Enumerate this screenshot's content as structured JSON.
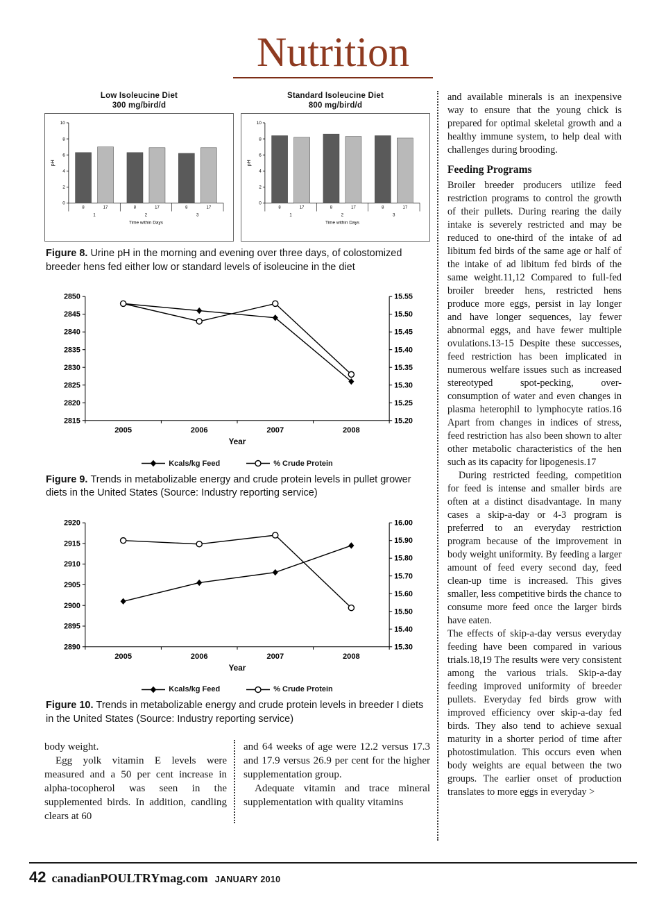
{
  "masthead": {
    "title": "Nutrition"
  },
  "figures": {
    "fig8": {
      "label": "Figure 8.",
      "caption": "Urine pH in the morning and evening over three days, of colostomized breeder hens fed either low or standard levels of isoleucine in the diet"
    },
    "fig9": {
      "label": "Figure 9.",
      "caption": "Trends in metabolizable energy and crude protein levels in pullet grower diets in the United States (Source: Industry reporting service)"
    },
    "fig10": {
      "label": "Figure 10.",
      "caption": "Trends in metabolizable energy and crude protein levels in breeder I diets in the United States (Source: Industry reporting service)"
    }
  },
  "chart_data": [
    {
      "id": "low-isoleucine",
      "type": "bar",
      "title": "Low Isoleucine Diet",
      "subtitle": "300 mg/bird/d",
      "ylabel": "pH",
      "xlabel": "Time within Days",
      "ylim": [
        0,
        10
      ],
      "yticks": [
        0,
        2,
        4,
        6,
        8,
        10
      ],
      "day_labels": [
        "1",
        "2",
        "3"
      ],
      "series": [
        {
          "name": "8",
          "color": "#5a5a5a",
          "values": [
            6.3,
            6.3,
            6.2
          ]
        },
        {
          "name": "17",
          "color": "#b9b9b9",
          "values": [
            7.0,
            6.9,
            6.9
          ]
        }
      ]
    },
    {
      "id": "standard-isoleucine",
      "type": "bar",
      "title": "Standard Isoleucine Diet",
      "subtitle": "800 mg/bird/d",
      "ylabel": "pH",
      "xlabel": "Time within Days",
      "ylim": [
        0,
        10
      ],
      "yticks": [
        0,
        2,
        4,
        6,
        8,
        10
      ],
      "day_labels": [
        "1",
        "2",
        "3"
      ],
      "series": [
        {
          "name": "8",
          "color": "#5a5a5a",
          "values": [
            8.4,
            8.6,
            8.4
          ]
        },
        {
          "name": "17",
          "color": "#b9b9b9",
          "values": [
            8.2,
            8.3,
            8.1
          ]
        }
      ]
    },
    {
      "id": "pullet-grower",
      "type": "line",
      "xlabel": "Year",
      "x": [
        "2005",
        "2006",
        "2007",
        "2008"
      ],
      "left_axis": {
        "min": 2815,
        "max": 2850,
        "step": 5,
        "decimals": 0
      },
      "right_axis": {
        "min": 15.2,
        "max": 15.55,
        "step": 0.05,
        "decimals": 2
      },
      "series": [
        {
          "name": "Kcals/kg Feed",
          "axis": "left",
          "marker": "diamond",
          "values": [
            2848,
            2846,
            2844,
            2826
          ]
        },
        {
          "name": "% Crude Protein",
          "axis": "right",
          "marker": "circle",
          "values": [
            15.53,
            15.48,
            15.53,
            15.33
          ]
        }
      ]
    },
    {
      "id": "breeder",
      "type": "line",
      "xlabel": "Year",
      "x": [
        "2005",
        "2006",
        "2007",
        "2008"
      ],
      "left_axis": {
        "min": 2890,
        "max": 2920,
        "step": 5,
        "decimals": 0
      },
      "right_axis": {
        "min": 15.3,
        "max": 16.0,
        "step": 0.1,
        "decimals": 2
      },
      "series": [
        {
          "name": "Kcals/kg Feed",
          "axis": "left",
          "marker": "diamond",
          "values": [
            2901,
            2905.5,
            2908,
            2914.5
          ]
        },
        {
          "name": "% Crude Protein",
          "axis": "right",
          "marker": "circle",
          "values": [
            15.9,
            15.88,
            15.93,
            15.52
          ]
        }
      ]
    }
  ],
  "body_left": {
    "col1_p1": "body weight.",
    "col1_p2": "Egg yolk vitamin E levels were measured and a 50 per cent increase in alpha-tocopherol was seen in the supplemented birds. In addition, candling clears at 60",
    "col2_p1": "and 64 weeks of age were 12.2 versus 17.3 and 17.9 versus 26.9 per cent for the higher supplementation group.",
    "col2_p2": "Adequate vitamin and trace mineral supplementation with quality vitamins"
  },
  "right_column": {
    "p1": "and available minerals is an inexpensive way to ensure that the young chick is prepared for optimal skeletal growth and a healthy immune system, to help deal with challenges during brooding.",
    "heading": "Feeding Programs",
    "p2": "Broiler breeder producers utilize feed restriction programs to control the growth of their pullets. During rearing the daily intake is severely restricted and may be reduced to one-third of the intake of ad libitum fed birds of the same age or half of the intake of ad libitum fed birds of the same weight.11,12 Compared to full-fed broiler breeder hens, restricted hens produce more eggs, persist in lay longer and have longer sequences, lay fewer abnormal eggs, and have fewer multiple ovulations.13-15 Despite these successes, feed restriction has been implicated in numerous welfare issues such as increased stereotyped spot-pecking, over-consumption of water and even changes in plasma heterophil to lymphocyte ratios.16 Apart from changes in indices of stress, feed restriction has also been shown to alter other metabolic characteristics of the hen such as its capacity for lipogenesis.17",
    "p3": "During restricted feeding, competition for feed is intense and smaller birds are often at a distinct disadvantage. In many cases a skip-a-day or 4-3 program is preferred to an everyday restriction program because of the improvement in body weight uniformity. By feeding a larger amount of feed every second day, feed clean-up time is increased. This gives smaller, less competitive birds the chance to consume more feed once the larger birds have eaten.",
    "p4": "The effects of skip-a-day versus everyday feeding have been compared in various trials.18,19 The results were very consistent among the various trials. Skip-a-day feeding improved uniformity of breeder pullets. Everyday fed birds grow with improved efficiency over skip-a-day fed birds. They also tend to achieve sexual maturity in a shorter period of time after photostimulation. This occurs even when body weights are equal between the two groups. The earlier onset of production translates to more eggs in everyday >"
  },
  "footer": {
    "page_number": "42",
    "site": "canadianPOULTRYmag.com",
    "date": "JANUARY 2010"
  }
}
